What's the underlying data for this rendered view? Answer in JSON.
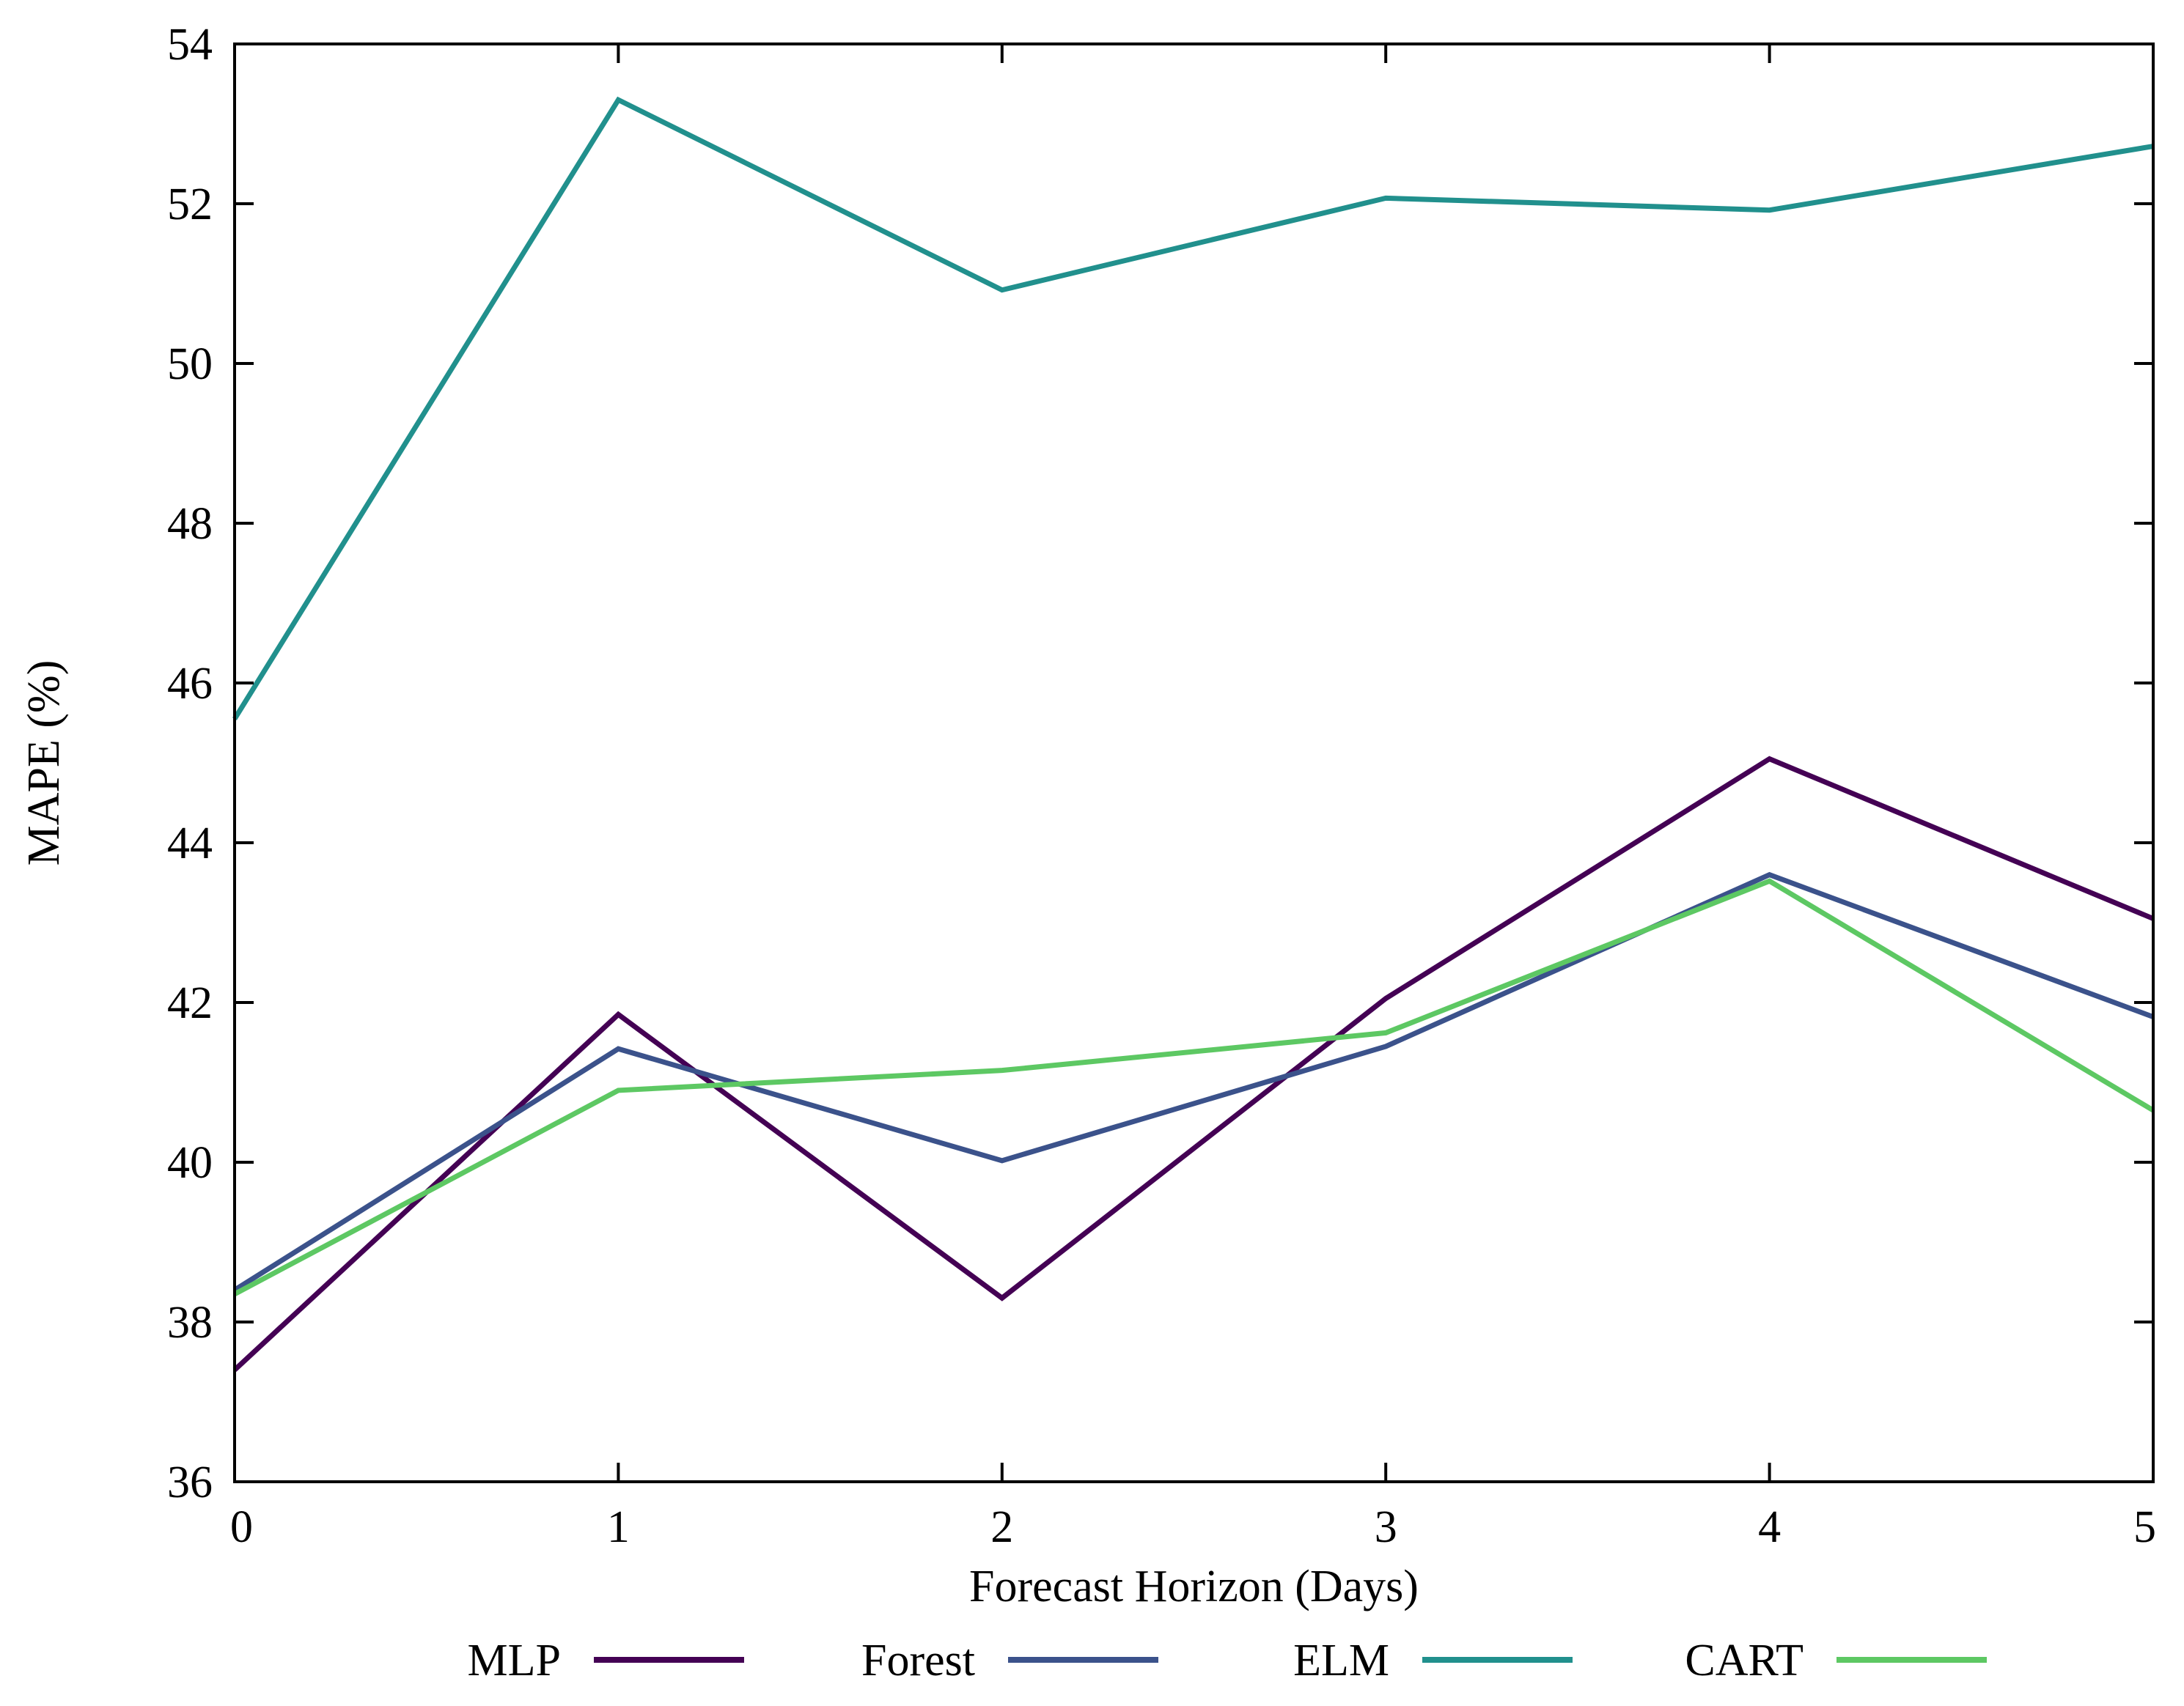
{
  "chart_data": {
    "type": "line",
    "title": "",
    "xlabel": "Forecast Horizon (Days)",
    "ylabel": "MAPE (%)",
    "xlim": [
      0,
      5
    ],
    "ylim": [
      36,
      54
    ],
    "xticks": [
      0,
      1,
      2,
      3,
      4,
      5
    ],
    "yticks": [
      36,
      38,
      40,
      42,
      44,
      46,
      48,
      50,
      52,
      54
    ],
    "grid": false,
    "legend_position": "bottom",
    "x": [
      0,
      1,
      2,
      3,
      4,
      5
    ],
    "series": [
      {
        "name": "MLP",
        "color": "#440154",
        "values": [
          37.4,
          41.85,
          38.3,
          42.05,
          45.05,
          43.05
        ]
      },
      {
        "name": "Forest",
        "color": "#3b528b",
        "values": [
          38.4,
          41.42,
          40.02,
          41.45,
          43.6,
          41.82
        ]
      },
      {
        "name": "ELM",
        "color": "#21908d",
        "values": [
          45.55,
          53.3,
          50.92,
          52.07,
          51.92,
          52.72
        ]
      },
      {
        "name": "CART",
        "color": "#5dc863",
        "values": [
          38.35,
          40.9,
          41.15,
          41.62,
          43.52,
          40.65
        ]
      }
    ]
  }
}
